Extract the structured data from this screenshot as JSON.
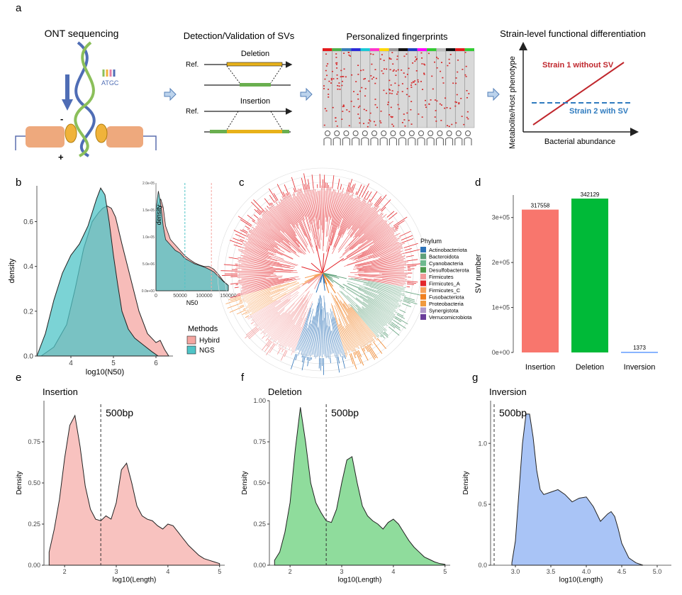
{
  "panel_labels": {
    "a": "a",
    "b": "b",
    "c": "c",
    "d": "d",
    "e": "e",
    "f": "f",
    "g": "g"
  },
  "colors": {
    "hybird": "#f4a6a1",
    "ngs": "#4fc4c7",
    "overlap": "#5f8f8b",
    "insertion": "#f8766d",
    "deletion": "#00ba38",
    "inversion": "#619cff",
    "strain1": "#c0272d",
    "strain2": "#2f7bbf"
  },
  "panel_a": {
    "ont_title": "ONT sequencing",
    "atgc": "ATGC",
    "minus": "-",
    "plus": "+",
    "sv_title": "Detection/Validation of SVs",
    "deletion_label": "Deletion",
    "insertion_label": "Insertion",
    "ref1": "Ref.",
    "ref2": "Ref.",
    "fingerprint_title": "Personalized fingerprints",
    "func_title": "Strain-level functional differentiation",
    "func_ylabel": "Metabolite/Host phenotype",
    "func_xlabel": "Bacterial abundance",
    "strain1_label": "Strain 1 without SV",
    "strain2_label": "Strain 2 with SV"
  },
  "chart_data": [
    {
      "id": "b",
      "type": "area",
      "xlabel": "log10(N50)",
      "ylabel": "density",
      "xticks": [
        "4",
        "5",
        "6"
      ],
      "yticks": [
        "0.0",
        "0.2",
        "0.4",
        "0.6"
      ],
      "xlim": [
        3.2,
        6.4
      ],
      "ylim": [
        0,
        0.76
      ],
      "legend_title": "Methods",
      "legend_position": "bottom-right",
      "series": [
        {
          "name": "Hybird",
          "x": [
            3.3,
            3.6,
            3.9,
            4.1,
            4.3,
            4.5,
            4.65,
            4.75,
            4.85,
            4.95,
            5.05,
            5.2,
            5.4,
            5.6,
            5.8,
            6.0,
            6.1,
            6.2,
            6.3
          ],
          "values": [
            0.0,
            0.04,
            0.14,
            0.3,
            0.48,
            0.6,
            0.64,
            0.66,
            0.67,
            0.66,
            0.62,
            0.5,
            0.35,
            0.2,
            0.1,
            0.06,
            0.07,
            0.03,
            0.0
          ]
        },
        {
          "name": "NGS",
          "x": [
            3.2,
            3.4,
            3.6,
            3.8,
            4.0,
            4.2,
            4.4,
            4.6,
            4.7,
            4.8,
            4.9,
            5.0,
            5.1,
            5.2,
            5.35,
            5.5,
            5.7,
            5.9,
            6.05
          ],
          "values": [
            0.0,
            0.1,
            0.25,
            0.37,
            0.45,
            0.5,
            0.58,
            0.7,
            0.75,
            0.72,
            0.6,
            0.45,
            0.32,
            0.2,
            0.12,
            0.08,
            0.05,
            0.02,
            0.0
          ]
        }
      ],
      "inset": {
        "xlabel": "N50",
        "ylabel": "density",
        "xticks": [
          "0",
          "50000",
          "100000",
          "150000"
        ],
        "yticks": [
          "0.0e+00",
          "5.0e-06",
          "1.0e-05",
          "1.5e-05",
          "2.0e-05"
        ],
        "xlim": [
          0,
          150000
        ],
        "ylim": [
          0,
          2e-05
        ],
        "vlines": [
          {
            "x": 60000,
            "color": "#4fc4c7"
          },
          {
            "x": 115000,
            "color": "#f4a6a1"
          }
        ],
        "series": [
          {
            "name": "Hybird",
            "x": [
              0,
              5000,
              10000,
              15000,
              20000,
              30000,
              40000,
              50000,
              60000,
              70000,
              80000,
              90000,
              100000,
              110000,
              120000,
              130000,
              140000,
              150000
            ],
            "values": [
              1.2e-05,
              1.6e-05,
              1.7e-05,
              1.55e-05,
              1.2e-05,
              9.5e-06,
              8.5e-06,
              7.5e-06,
              6.5e-06,
              5.8e-06,
              5.2e-06,
              4.8e-06,
              4.5e-06,
              4.5e-06,
              4e-06,
              3e-06,
              1.8e-06,
              1e-06
            ]
          },
          {
            "name": "NGS",
            "x": [
              0,
              5000,
              10000,
              15000,
              20000,
              30000,
              40000,
              50000,
              60000,
              70000,
              80000,
              90000,
              100000,
              110000,
              120000,
              130000,
              140000,
              150000
            ],
            "values": [
              1.5e-05,
              1.85e-05,
              1.6e-05,
              1.2e-05,
              9.5e-06,
              8.5e-06,
              7.5e-06,
              7e-06,
              6e-06,
              5.5e-06,
              5e-06,
              4.7e-06,
              4.4e-06,
              4e-06,
              3.5e-06,
              2.6e-06,
              1.7e-06,
              1e-06
            ]
          }
        ]
      }
    },
    {
      "id": "c",
      "type": "tree",
      "legend_title": "Phylum",
      "legend": [
        {
          "name": "Actinobacteriota",
          "color": "#2e73b8"
        },
        {
          "name": "Bacteroidota",
          "color": "#5fa07a"
        },
        {
          "name": "Cyanobacteria",
          "color": "#6fb98f"
        },
        {
          "name": "Desulfobacterota",
          "color": "#4e9a4b"
        },
        {
          "name": "Firmicutes",
          "color": "#f39a9a"
        },
        {
          "name": "Firmicutes_A",
          "color": "#e3262b"
        },
        {
          "name": "Firmicutes_C",
          "color": "#f7a25b"
        },
        {
          "name": "Fusobacteriota",
          "color": "#f07f1f"
        },
        {
          "name": "Proteobacteria",
          "color": "#f09a3e"
        },
        {
          "name": "Synergistota",
          "color": "#b19acb"
        },
        {
          "name": "Verrucomicrobiota",
          "color": "#6a3d9a"
        }
      ]
    },
    {
      "id": "d",
      "type": "bar",
      "ylabel": "SV number",
      "categories": [
        "Insertion",
        "Deletion",
        "Inversion"
      ],
      "values": [
        317558,
        342129,
        1373
      ],
      "labels": [
        "317558",
        "342129",
        "1373"
      ],
      "yticks": [
        "0e+00",
        "1e+05",
        "2e+05",
        "3e+05"
      ],
      "ylim": [
        0,
        350000
      ]
    },
    {
      "id": "e",
      "type": "area",
      "title": "Insertion",
      "annotation": "500bp",
      "vline": 2.7,
      "xlabel": "log10(Length)",
      "ylabel": "Density",
      "xticks": [
        "2",
        "3",
        "4",
        "5"
      ],
      "yticks": [
        "0.00",
        "0.25",
        "0.50",
        "0.75"
      ],
      "xlim": [
        1.6,
        5.1
      ],
      "ylim": [
        0,
        1.0
      ],
      "series": [
        {
          "name": "Insertion",
          "x": [
            1.7,
            1.8,
            1.9,
            2.0,
            2.1,
            2.2,
            2.3,
            2.4,
            2.5,
            2.6,
            2.7,
            2.8,
            2.9,
            3.0,
            3.1,
            3.2,
            3.3,
            3.4,
            3.5,
            3.6,
            3.7,
            3.8,
            3.9,
            4.0,
            4.1,
            4.2,
            4.3,
            4.4,
            4.5,
            4.6,
            4.7,
            4.8,
            4.9,
            5.0
          ],
          "values": [
            0.08,
            0.22,
            0.4,
            0.65,
            0.85,
            0.91,
            0.72,
            0.48,
            0.34,
            0.28,
            0.27,
            0.3,
            0.28,
            0.38,
            0.58,
            0.62,
            0.5,
            0.36,
            0.3,
            0.28,
            0.27,
            0.24,
            0.22,
            0.25,
            0.24,
            0.2,
            0.16,
            0.12,
            0.09,
            0.06,
            0.04,
            0.03,
            0.02,
            0.01
          ]
        }
      ]
    },
    {
      "id": "f",
      "type": "area",
      "title": "Deletion",
      "annotation": "500bp",
      "vline": 2.7,
      "xlabel": "log10(Length)",
      "ylabel": "Density",
      "xticks": [
        "2",
        "3",
        "4",
        "5"
      ],
      "yticks": [
        "0.00",
        "0.25",
        "0.50",
        "0.75",
        "1.00"
      ],
      "xlim": [
        1.6,
        5.1
      ],
      "ylim": [
        0,
        1.0
      ],
      "series": [
        {
          "name": "Deletion",
          "x": [
            1.7,
            1.8,
            1.9,
            2.0,
            2.1,
            2.2,
            2.3,
            2.4,
            2.5,
            2.6,
            2.7,
            2.8,
            2.9,
            3.0,
            3.1,
            3.2,
            3.3,
            3.4,
            3.5,
            3.6,
            3.7,
            3.8,
            3.9,
            4.0,
            4.1,
            4.2,
            4.3,
            4.4,
            4.5,
            4.6,
            4.7,
            4.8,
            4.9,
            5.0
          ],
          "values": [
            0.03,
            0.08,
            0.2,
            0.38,
            0.7,
            0.96,
            0.75,
            0.5,
            0.38,
            0.32,
            0.27,
            0.26,
            0.34,
            0.5,
            0.64,
            0.66,
            0.5,
            0.36,
            0.3,
            0.27,
            0.25,
            0.22,
            0.26,
            0.28,
            0.25,
            0.2,
            0.15,
            0.11,
            0.08,
            0.05,
            0.035,
            0.02,
            0.01,
            0.005
          ]
        }
      ]
    },
    {
      "id": "g",
      "type": "area",
      "title": "Inversion",
      "annotation": "500bp",
      "vline": 2.7,
      "xlabel": "log10(Length)",
      "ylabel": "Density",
      "xticks": [
        "3.0",
        "3.5",
        "4.0",
        "4.5",
        "5.0"
      ],
      "yticks": [
        "0.0",
        "0.5",
        "1.0"
      ],
      "xlim": [
        2.65,
        5.2
      ],
      "ylim": [
        0,
        1.35
      ],
      "series": [
        {
          "name": "Inversion",
          "x": [
            2.95,
            3.0,
            3.05,
            3.1,
            3.15,
            3.2,
            3.25,
            3.3,
            3.35,
            3.4,
            3.5,
            3.6,
            3.7,
            3.8,
            3.9,
            4.0,
            4.1,
            4.2,
            4.3,
            4.35,
            4.4,
            4.45,
            4.5,
            4.6,
            4.7,
            4.8
          ],
          "values": [
            0.02,
            0.2,
            0.6,
            1.0,
            1.24,
            1.24,
            1.05,
            0.78,
            0.62,
            0.58,
            0.6,
            0.62,
            0.58,
            0.52,
            0.55,
            0.56,
            0.48,
            0.36,
            0.42,
            0.44,
            0.4,
            0.3,
            0.18,
            0.06,
            0.02,
            0.0
          ]
        }
      ]
    }
  ]
}
